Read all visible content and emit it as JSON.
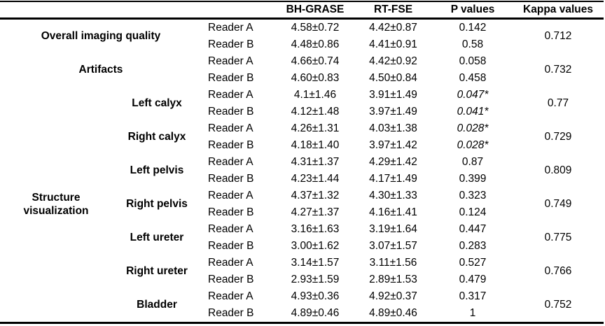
{
  "header": {
    "bh_grase": "BH-GRASE",
    "rt_fse": "RT-FSE",
    "p_values": "P values",
    "kappa_values": "Kappa values"
  },
  "section": {
    "label": "Structure visualization"
  },
  "groups": [
    {
      "label": "Overall imaging quality",
      "kappa": "0.712",
      "rows": [
        {
          "reader": "Reader A",
          "bh": "4.58±0.72",
          "rt": "4.42±0.87",
          "p": "0.142"
        },
        {
          "reader": "Reader B",
          "bh": "4.48±0.86",
          "rt": "4.41±0.91",
          "p": "0.58"
        }
      ]
    },
    {
      "label": "Artifacts",
      "kappa": "0.732",
      "rows": [
        {
          "reader": "Reader A",
          "bh": "4.66±0.74",
          "rt": "4.42±0.92",
          "p": "0.058"
        },
        {
          "reader": "Reader B",
          "bh": "4.60±0.83",
          "rt": "4.50±0.84",
          "p": "0.458"
        }
      ]
    },
    {
      "label": "Left calyx",
      "kappa": "0.77",
      "rows": [
        {
          "reader": "Reader A",
          "bh": "4.1±1.46",
          "rt": "3.91±1.49",
          "p": "0.047*"
        },
        {
          "reader": "Reader B",
          "bh": "4.12±1.48",
          "rt": "3.97±1.49",
          "p": "0.041*"
        }
      ]
    },
    {
      "label": "Right calyx",
      "kappa": "0.729",
      "rows": [
        {
          "reader": "Reader A",
          "bh": "4.26±1.31",
          "rt": "4.03±1.38",
          "p": "0.028*"
        },
        {
          "reader": "Reader B",
          "bh": "4.18±1.40",
          "rt": "3.97±1.42",
          "p": "0.028*"
        }
      ]
    },
    {
      "label": "Left pelvis",
      "kappa": "0.809",
      "rows": [
        {
          "reader": "Reader A",
          "bh": "4.31±1.37",
          "rt": "4.29±1.42",
          "p": "0.87"
        },
        {
          "reader": "Reader B",
          "bh": "4.23±1.44",
          "rt": "4.17±1.49",
          "p": "0.399"
        }
      ]
    },
    {
      "label": "Right pelvis",
      "kappa": "0.749",
      "rows": [
        {
          "reader": "Reader A",
          "bh": "4.37±1.32",
          "rt": "4.30±1.33",
          "p": "0.323"
        },
        {
          "reader": "Reader B",
          "bh": "4.27±1.37",
          "rt": "4.16±1.41",
          "p": "0.124"
        }
      ]
    },
    {
      "label": "Left ureter",
      "kappa": "0.775",
      "rows": [
        {
          "reader": "Reader A",
          "bh": "3.16±1.63",
          "rt": "3.19±1.64",
          "p": "0.447"
        },
        {
          "reader": "Reader B",
          "bh": "3.00±1.62",
          "rt": "3.07±1.57",
          "p": "0.283"
        }
      ]
    },
    {
      "label": "Right ureter",
      "kappa": "0.766",
      "rows": [
        {
          "reader": "Reader A",
          "bh": "3.14±1.57",
          "rt": "3.11±1.56",
          "p": "0.527"
        },
        {
          "reader": "Reader B",
          "bh": "2.93±1.59",
          "rt": "2.89±1.53",
          "p": "0.479"
        }
      ]
    },
    {
      "label": "Bladder",
      "kappa": "0.752",
      "rows": [
        {
          "reader": "Reader A",
          "bh": "4.93±0.36",
          "rt": "4.92±0.37",
          "p": "0.317"
        },
        {
          "reader": "Reader B",
          "bh": "4.89±0.46",
          "rt": "4.89±0.46",
          "p": "1"
        }
      ]
    }
  ]
}
